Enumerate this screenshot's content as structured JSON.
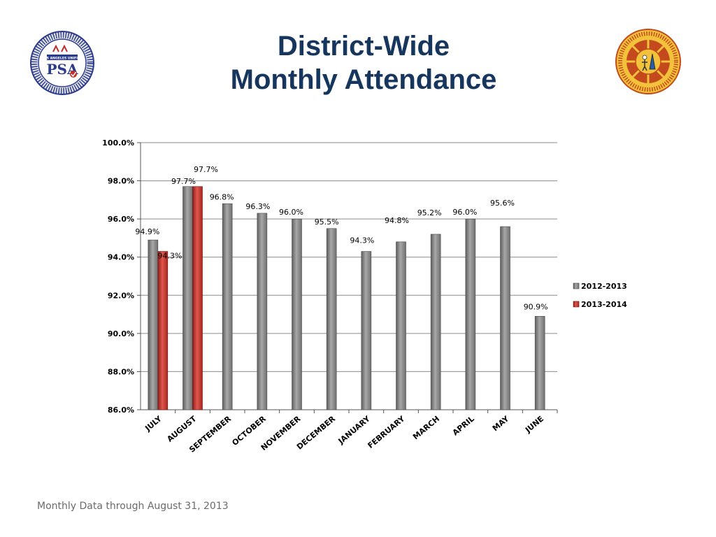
{
  "title_line1": "District-Wide",
  "title_line2": "Monthly Attendance",
  "footer": "Monthly Data through August 31, 2013",
  "logos": {
    "left": {
      "main_text": "PSA",
      "top_text": "LOS ANGELES UNIFIED"
    },
    "right": {
      "name": "Los Angeles Unified School District Board of Education seal"
    }
  },
  "colors": {
    "title": "#17365d",
    "series_2012": "#7f7f7f",
    "series_2013": "#c0302b",
    "grid": "#8c8c8c"
  },
  "chart_data": {
    "type": "bar",
    "title": "",
    "xlabel": "",
    "ylabel": "",
    "ylim": [
      86.0,
      100.0
    ],
    "yticks": [
      86.0,
      88.0,
      90.0,
      92.0,
      94.0,
      96.0,
      98.0,
      100.0
    ],
    "ytick_labels": [
      "86.0%",
      "88.0%",
      "90.0%",
      "92.0%",
      "94.0%",
      "96.0%",
      "98.0%",
      "100.0%"
    ],
    "grid": true,
    "legend_position": "right",
    "categories": [
      "JULY",
      "AUGUST",
      "SEPTEMBER",
      "OCTOBER",
      "NOVEMBER",
      "DECEMBER",
      "JANUARY",
      "FEBRUARY",
      "MARCH",
      "APRIL",
      "MAY",
      "JUNE"
    ],
    "series": [
      {
        "name": "2012-2013",
        "values": [
          94.9,
          97.7,
          96.8,
          96.3,
          96.0,
          95.5,
          94.3,
          94.8,
          95.2,
          96.0,
          95.6,
          90.9
        ],
        "labels": [
          "94.9%",
          "97.7%",
          "96.8%",
          "96.3%",
          "96.0%",
          "95.5%",
          "94.3%",
          "94.8%",
          "95.2%",
          "96.0%",
          "95.6%",
          "90.9%"
        ]
      },
      {
        "name": "2013-2014",
        "values": [
          94.3,
          97.7,
          null,
          null,
          null,
          null,
          null,
          null,
          null,
          null,
          null,
          null
        ],
        "labels": [
          "94.3%",
          "97.7%",
          null,
          null,
          null,
          null,
          null,
          null,
          null,
          null,
          null,
          null
        ]
      }
    ]
  }
}
